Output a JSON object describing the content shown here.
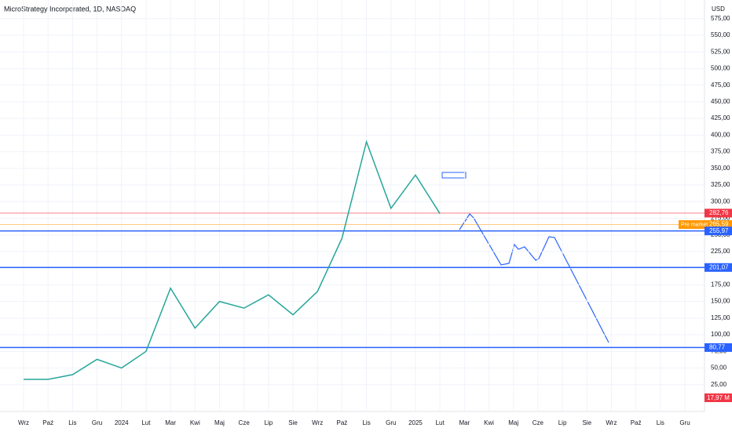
{
  "chart_data": {
    "type": "line",
    "title": "MicroStrategy Incorporated, 1D, NASDAQ",
    "currency": "USD",
    "categories": [
      "Wrz",
      "Paź",
      "Lis",
      "Gru",
      "2024",
      "Lut",
      "Mar",
      "Kwi",
      "Maj",
      "Cze",
      "Lip",
      "Sie",
      "Wrz",
      "Paź",
      "Lis",
      "Gru",
      "2025",
      "Lut",
      "Mar",
      "Kwi",
      "Maj",
      "Cze",
      "Lip",
      "Sie",
      "Wrz",
      "Paź",
      "Lis",
      "Gru"
    ],
    "series": [
      {
        "color": "#26a69a",
        "values": [
          33,
          33,
          40,
          63,
          50,
          75,
          170,
          110,
          150,
          140,
          160,
          130,
          165,
          245,
          390,
          290,
          340,
          282,
          null,
          null,
          null,
          null,
          null,
          null,
          null,
          null,
          null,
          null
        ]
      }
    ],
    "ylim": [
      0,
      603
    ],
    "yticks": [
      {
        "value": 25,
        "label": "25,00"
      },
      {
        "value": 50,
        "label": "50,00"
      },
      {
        "value": 75,
        "label": "75,00"
      },
      {
        "value": 100,
        "label": "100,00"
      },
      {
        "value": 125,
        "label": "125,00"
      },
      {
        "value": 150,
        "label": "150,00"
      },
      {
        "value": 175,
        "label": "175,00"
      },
      {
        "value": 200,
        "label": "200,00"
      },
      {
        "value": 225,
        "label": "225,00"
      },
      {
        "value": 250,
        "label": "250,00"
      },
      {
        "value": 275,
        "label": "275,00"
      },
      {
        "value": 300,
        "label": "300,00"
      },
      {
        "value": 325,
        "label": "325,00"
      },
      {
        "value": 350,
        "label": "350,00"
      },
      {
        "value": 375,
        "label": "375,00"
      },
      {
        "value": 400,
        "label": "400,00"
      },
      {
        "value": 425,
        "label": "425,00"
      },
      {
        "value": 450,
        "label": "450,00"
      },
      {
        "value": 475,
        "label": "475,00"
      },
      {
        "value": 500,
        "label": "500,00"
      },
      {
        "value": 525,
        "label": "525,00"
      },
      {
        "value": 550,
        "label": "550,00"
      },
      {
        "value": 575,
        "label": "575,00"
      }
    ],
    "grid": true,
    "levels": [
      {
        "value": 282.76,
        "label": "282,76",
        "color": "#f23645"
      },
      {
        "value": 265.59,
        "label": "265,59",
        "color": "#ff9800"
      },
      {
        "value": 255.97,
        "label": "255,97",
        "color": "#2962ff"
      },
      {
        "value": 201.07,
        "label": "201,07",
        "color": "#2962ff"
      },
      {
        "value": 80.77,
        "label": "80,77",
        "color": "#2962ff"
      }
    ],
    "premarket_label": "Pre market",
    "volume_label": "17,97 M"
  }
}
